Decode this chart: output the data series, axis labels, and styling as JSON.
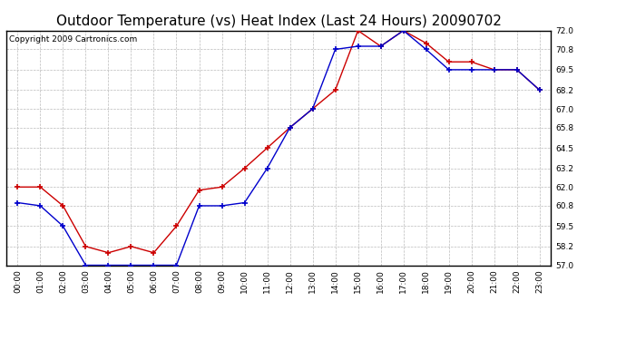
{
  "title": "Outdoor Temperature (vs) Heat Index (Last 24 Hours) 20090702",
  "copyright_text": "Copyright 2009 Cartronics.com",
  "hours": [
    0,
    1,
    2,
    3,
    4,
    5,
    6,
    7,
    8,
    9,
    10,
    11,
    12,
    13,
    14,
    15,
    16,
    17,
    18,
    19,
    20,
    21,
    22,
    23
  ],
  "temp_blue": [
    61.0,
    60.8,
    59.5,
    57.0,
    57.0,
    57.0,
    57.0,
    57.0,
    60.8,
    60.8,
    61.0,
    63.2,
    65.8,
    67.0,
    70.8,
    71.0,
    71.0,
    72.0,
    70.8,
    69.5,
    69.5,
    69.5,
    69.5,
    68.2
  ],
  "heat_red": [
    62.0,
    62.0,
    60.8,
    58.2,
    57.8,
    58.2,
    57.8,
    59.5,
    61.8,
    62.0,
    63.2,
    64.5,
    65.8,
    67.0,
    68.2,
    72.0,
    71.0,
    72.0,
    71.2,
    70.0,
    70.0,
    69.5,
    69.5,
    68.2
  ],
  "ylim": [
    57.0,
    72.0
  ],
  "yticks": [
    57.0,
    58.2,
    59.5,
    60.8,
    62.0,
    63.2,
    64.5,
    65.8,
    67.0,
    68.2,
    69.5,
    70.8,
    72.0
  ],
  "blue_color": "#0000cc",
  "red_color": "#cc0000",
  "bg_color": "#ffffff",
  "grid_color": "#bbbbbb",
  "title_fontsize": 11,
  "copyright_fontsize": 6.5
}
